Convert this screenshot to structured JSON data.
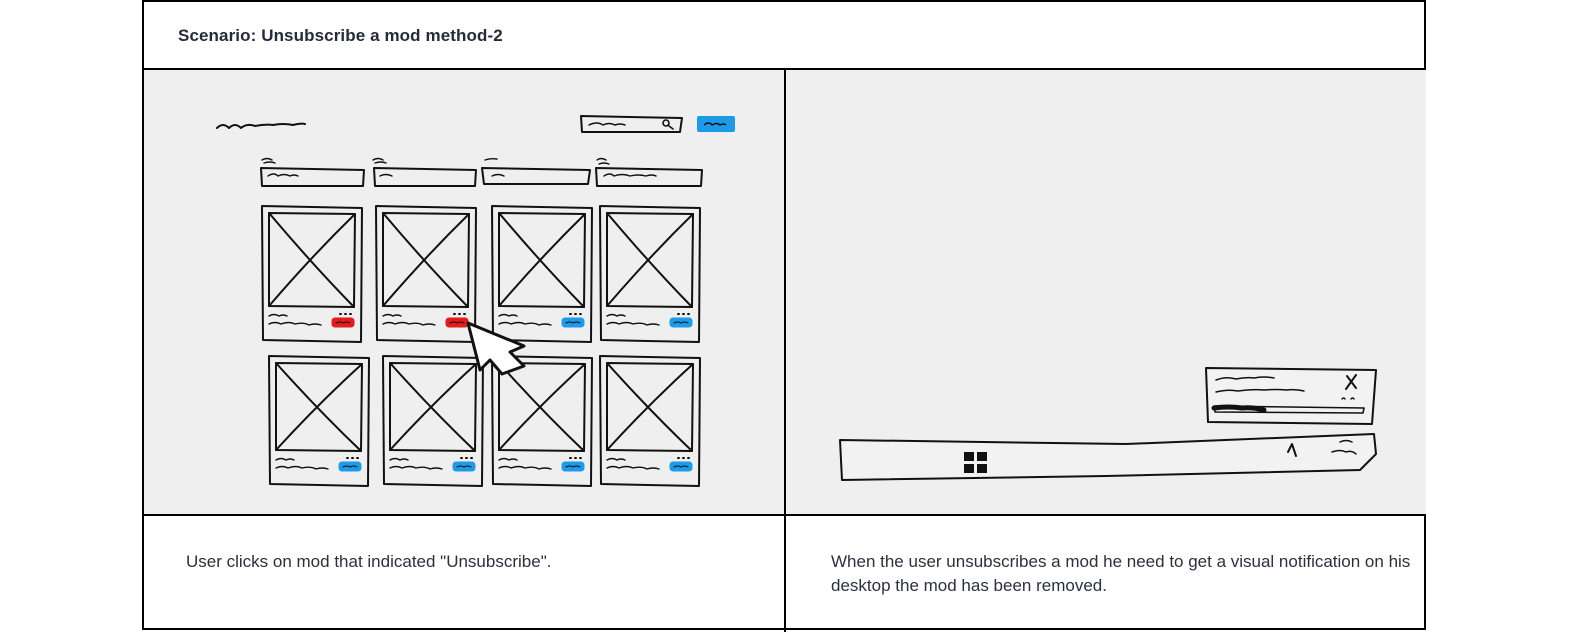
{
  "scenario_title": "Scenario: Unsubscribe a mod method-2",
  "captions": {
    "left": "User clicks on mod that indicated \"Unsubscribe\".",
    "right": "When the user unsubscribes a mod he need to get a visual notification on his desktop the mod has been removed."
  },
  "colors": {
    "panel_bg": "#efefef",
    "subscribe_button": "#1e9be8",
    "unsubscribe_button": "#e21b1b",
    "sketch_stroke": "#111111"
  },
  "icons": {
    "cursor": "arrow-cursor-icon",
    "search": "search-icon",
    "close": "close-icon",
    "start": "windows-logo-icon",
    "tray": "chevron-up-icon"
  },
  "left_sketch": {
    "filter_count": 4,
    "mod_cards": [
      {
        "row": 1,
        "button": "unsubscribe"
      },
      {
        "row": 1,
        "button": "unsubscribe"
      },
      {
        "row": 1,
        "button": "subscribe"
      },
      {
        "row": 1,
        "button": "subscribe"
      },
      {
        "row": 2,
        "button": "subscribe"
      },
      {
        "row": 2,
        "button": "subscribe"
      },
      {
        "row": 2,
        "button": "subscribe"
      },
      {
        "row": 2,
        "button": "subscribe"
      }
    ]
  },
  "right_sketch": {
    "notification": "toast",
    "taskbar": "desktop-taskbar"
  }
}
